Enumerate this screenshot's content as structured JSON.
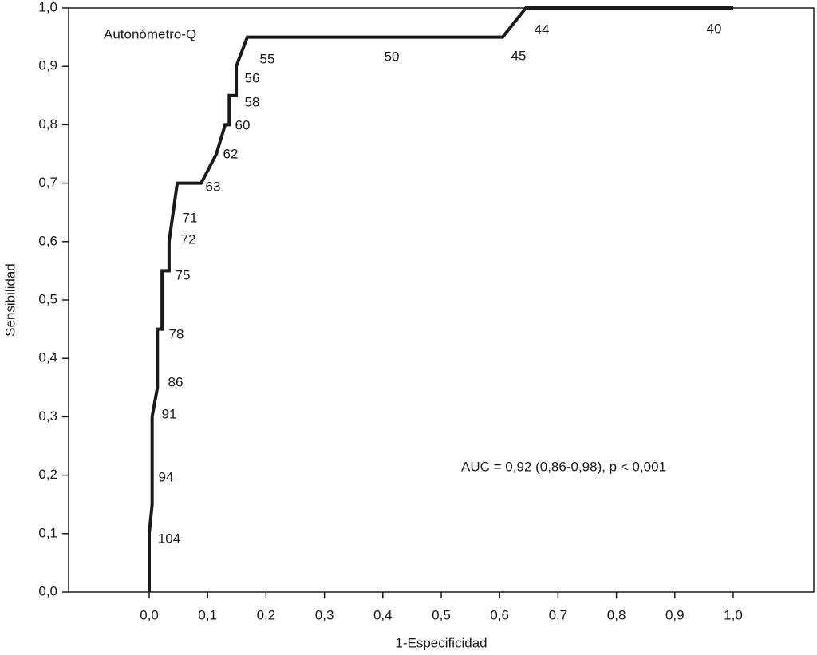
{
  "chart_data": {
    "type": "line",
    "xlabel": "1-Especificidad",
    "ylabel": "Sensibilidad",
    "annotation": "AUC = 0,92 (0,86-0,98), p < 0,001",
    "threshold_labels": [
      "104",
      "94",
      "91",
      "86",
      "78",
      "75",
      "72",
      "71",
      "63",
      "62",
      "60",
      "58",
      "56",
      "55",
      "50",
      "45",
      "44",
      "40"
    ],
    "xlim": [
      -0.138,
      1.138
    ],
    "ylim": [
      0,
      1
    ],
    "xticks": [
      {
        "value": 0,
        "label": "0,0"
      },
      {
        "value": 0.1,
        "label": "0,1"
      },
      {
        "value": 0.2,
        "label": "0,2"
      },
      {
        "value": 0.3,
        "label": "0,3"
      },
      {
        "value": 0.4,
        "label": "0,4"
      },
      {
        "value": 0.5,
        "label": "0,5"
      },
      {
        "value": 0.6,
        "label": "0,6"
      },
      {
        "value": 0.7,
        "label": "0,7"
      },
      {
        "value": 0.8,
        "label": "0,8"
      },
      {
        "value": 0.9,
        "label": "0,9"
      },
      {
        "value": 1,
        "label": "1,0"
      }
    ],
    "yticks": [
      {
        "value": 0,
        "label": "0,0"
      },
      {
        "value": 0.1,
        "label": "0,1"
      },
      {
        "value": 0.2,
        "label": "0,2"
      },
      {
        "value": 0.3,
        "label": "0,3"
      },
      {
        "value": 0.4,
        "label": "0,4"
      },
      {
        "value": 0.5,
        "label": "0,5"
      },
      {
        "value": 0.6,
        "label": "0,6"
      },
      {
        "value": 0.7,
        "label": "0,7"
      },
      {
        "value": 0.8,
        "label": "0,8"
      },
      {
        "value": 0.9,
        "label": "0,9"
      },
      {
        "value": 1,
        "label": "1,0"
      }
    ],
    "series": [
      {
        "name": "Autonómetro-Q",
        "color": "#1a1a1a",
        "x": [
          0,
          0,
          0.005,
          0.005,
          0.014,
          0.014,
          0.022,
          0.022,
          0.034,
          0.034,
          0.048,
          0.089,
          0.115,
          0.13,
          0.137,
          0.137,
          0.149,
          0.149,
          0.168,
          0.605,
          0.645,
          1
        ],
        "values": [
          0,
          0.1,
          0.15,
          0.3,
          0.35,
          0.45,
          0.45,
          0.55,
          0.55,
          0.6,
          0.7,
          0.7,
          0.75,
          0.8,
          0.8,
          0.85,
          0.85,
          0.9,
          0.95,
          0.95,
          1,
          1
        ]
      }
    ]
  }
}
